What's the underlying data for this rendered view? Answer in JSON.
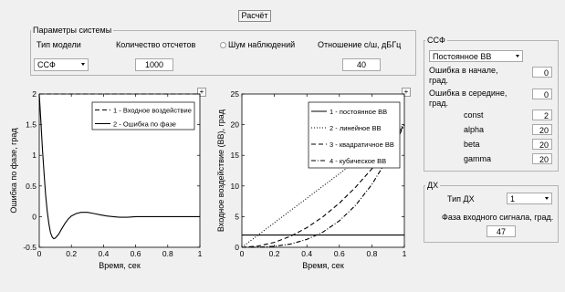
{
  "calc_button": "Расчёт",
  "system_params": {
    "title": "Параметры системы",
    "model_type_label": "Тип модели",
    "model_type_value": "ССФ",
    "samples_label": "Количество отсчетов",
    "samples_value": "1000",
    "noise_label": "Шум наблюдений",
    "snr_label": "Отношение с/ш, дБГц",
    "snr_value": "40"
  },
  "ssf": {
    "title": "ССФ",
    "type_value": "Постоянное ВВ",
    "err_start_label": "Ошибка в начале, град.",
    "err_start_value": "0",
    "err_mid_label": "Ошибка в середине, град.",
    "err_mid_value": "0",
    "params": [
      {
        "label": "const",
        "value": "2"
      },
      {
        "label": "alpha",
        "value": "20"
      },
      {
        "label": "beta",
        "value": "20"
      },
      {
        "label": "gamma",
        "value": "20"
      }
    ]
  },
  "dx": {
    "title": "ДХ",
    "type_label": "Тип ДХ",
    "type_value": "1",
    "phase_label": "Фаза входного сигнала, град.",
    "phase_value": "47"
  },
  "plot_button_symbol": "+",
  "chart_data": [
    {
      "type": "line",
      "xlabel": "Время, сек",
      "ylabel": "Ошибка по фазе, град",
      "xlim": [
        0,
        1
      ],
      "ylim": [
        -0.5,
        2
      ],
      "xticks": [
        "0",
        "0.2",
        "0.4",
        "0.6",
        "0.8",
        "1"
      ],
      "yticks": [
        "-0.5",
        "0",
        "0.5",
        "1",
        "1.5",
        "2"
      ],
      "legend_position": "top-right",
      "series": [
        {
          "name": "1 - Входное воздействие",
          "style": "dashed",
          "x": [
            0,
            1
          ],
          "y": [
            2,
            2
          ]
        },
        {
          "name": "2 - Ошибка по фазе",
          "style": "solid",
          "x": [
            0,
            0.01,
            0.02,
            0.03,
            0.04,
            0.05,
            0.06,
            0.07,
            0.08,
            0.09,
            0.1,
            0.12,
            0.14,
            0.16,
            0.18,
            0.2,
            0.23,
            0.26,
            0.3,
            0.34,
            0.38,
            0.42,
            0.46,
            0.5,
            0.55,
            0.6,
            0.7,
            0.8,
            1
          ],
          "y": [
            2,
            1.55,
            1.1,
            0.7,
            0.35,
            0.08,
            -0.12,
            -0.26,
            -0.33,
            -0.36,
            -0.35,
            -0.29,
            -0.2,
            -0.11,
            -0.04,
            0.01,
            0.05,
            0.07,
            0.07,
            0.05,
            0.03,
            0.01,
            0.0,
            -0.01,
            -0.01,
            0.0,
            0.0,
            0.0,
            0.0
          ]
        }
      ]
    },
    {
      "type": "line",
      "xlabel": "Время, сек",
      "ylabel": "Входное воздействие (ВВ), град",
      "xlim": [
        0,
        1
      ],
      "ylim": [
        0,
        25
      ],
      "xticks": [
        "0",
        "0.2",
        "0.4",
        "0.6",
        "0.8",
        "1"
      ],
      "yticks": [
        "0",
        "5",
        "10",
        "15",
        "20",
        "25"
      ],
      "legend_position": "top-right",
      "series": [
        {
          "name": "1 - постоянное ВВ",
          "style": "solid",
          "x": [
            0,
            1
          ],
          "y": [
            2,
            2
          ]
        },
        {
          "name": "2 - линейное ВВ",
          "style": "dotted",
          "x": [
            0,
            1
          ],
          "y": [
            0,
            20
          ]
        },
        {
          "name": "3 - квадратичное ВВ",
          "style": "dashed",
          "x": [
            0,
            0.1,
            0.2,
            0.3,
            0.4,
            0.5,
            0.6,
            0.7,
            0.8,
            0.9,
            1
          ],
          "y": [
            0,
            0.2,
            0.8,
            1.8,
            3.2,
            5,
            7.2,
            9.8,
            12.8,
            16.2,
            20
          ]
        },
        {
          "name": "4 - кубическое ВВ",
          "style": "dashdot",
          "x": [
            0,
            0.1,
            0.2,
            0.3,
            0.4,
            0.5,
            0.6,
            0.7,
            0.8,
            0.9,
            1
          ],
          "y": [
            0,
            0.02,
            0.16,
            0.54,
            1.28,
            2.5,
            4.32,
            6.86,
            10.24,
            14.58,
            20
          ]
        }
      ]
    }
  ]
}
